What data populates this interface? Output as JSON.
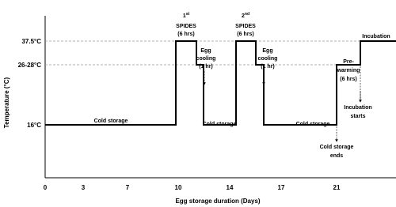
{
  "axes": {
    "y_title": "Temperature (°C)",
    "x_title": "Egg storage duration (Days)",
    "y_labels": [
      "37.5°C",
      "26-28°C",
      "16°C"
    ],
    "x_labels": [
      "0",
      "3",
      "7",
      "10",
      "14",
      "17",
      "21"
    ]
  },
  "annotations": {
    "cold_storage_1": "Cold storage",
    "spides_1": {
      "ordinal": "1",
      "suffix": "st",
      "line1": "SPIDES",
      "line2": "(6 hrs)"
    },
    "egg_cooling_1": [
      "Egg",
      "cooling",
      "(1 hr)"
    ],
    "cold_storage_2": "Cold storage",
    "spides_2": {
      "ordinal": "2",
      "suffix": "nd",
      "line1": "SPIDES",
      "line2": "(6 hrs)"
    },
    "egg_cooling_2": [
      "Egg",
      "cooling",
      "(1 hr)"
    ],
    "cold_storage_3": "Cold storage",
    "pre_warming": [
      "Pre-",
      "warming",
      "(6 hrs)"
    ],
    "incubation": "Incubation",
    "incubation_starts": [
      "Incubation",
      "starts"
    ],
    "cold_storage_ends": [
      "Cold storage",
      "ends"
    ]
  }
}
